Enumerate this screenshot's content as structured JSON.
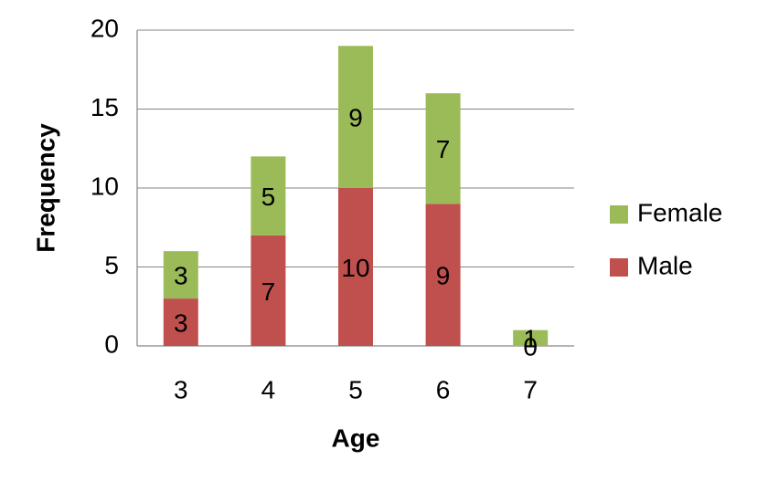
{
  "chart_data": {
    "type": "stacked-bar",
    "x_label": "Age",
    "y_label": "Frequency",
    "categories": [
      "3",
      "4",
      "5",
      "6",
      "7"
    ],
    "series": [
      {
        "name": "Male",
        "color": "#c0504d",
        "values": [
          3,
          7,
          10,
          9,
          0
        ]
      },
      {
        "name": "Female",
        "color": "#9bbb59",
        "values": [
          3,
          5,
          9,
          7,
          1
        ]
      }
    ],
    "ylim": [
      0,
      20
    ],
    "yticks": [
      0,
      5,
      10,
      15,
      20
    ],
    "grid": true,
    "legend": "right"
  }
}
